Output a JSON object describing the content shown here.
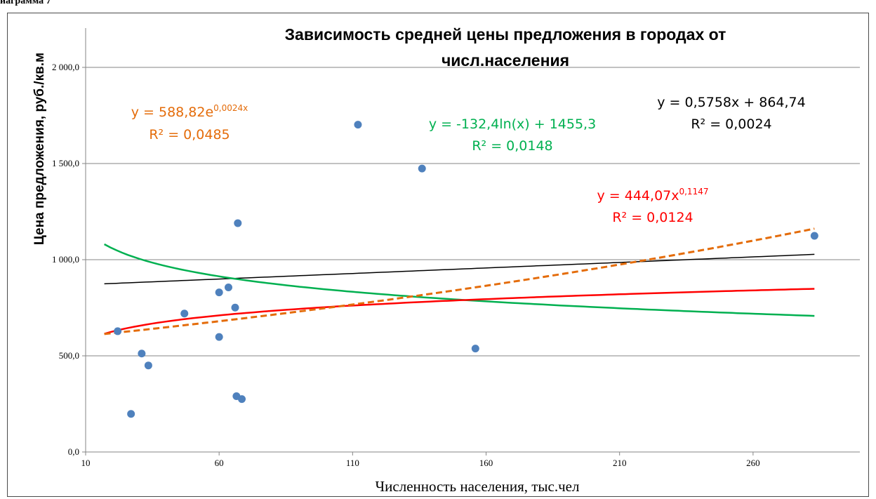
{
  "page": {
    "fragment_text": "иаграмма 7"
  },
  "chart_data": {
    "type": "scatter",
    "title_lines": [
      "Зависимость средней цены предложения в городах от",
      "числ.населения"
    ],
    "xlabel": "Численность населения, тыс.чел",
    "ylabel": "Цена  предложения, руб./кв.м",
    "xlim": [
      10,
      300
    ],
    "ylim": [
      0,
      2000
    ],
    "grid": true,
    "x_ticks": [
      10,
      60,
      110,
      160,
      210,
      260
    ],
    "x_tick_labels": [
      "10",
      "60",
      "110",
      "160",
      "210",
      "260"
    ],
    "y_ticks": [
      0,
      500,
      1000,
      1500,
      2000
    ],
    "y_tick_labels": [
      "0,0",
      "500,0",
      "1 000,0",
      "1 500,0",
      "2 000,0"
    ],
    "marker_color": "#4f81bd",
    "points": [
      {
        "x": 22,
        "y": 628
      },
      {
        "x": 27,
        "y": 198
      },
      {
        "x": 31,
        "y": 512
      },
      {
        "x": 33.5,
        "y": 450
      },
      {
        "x": 47,
        "y": 720
      },
      {
        "x": 60,
        "y": 598
      },
      {
        "x": 60,
        "y": 830
      },
      {
        "x": 63.5,
        "y": 856
      },
      {
        "x": 66,
        "y": 751
      },
      {
        "x": 66.5,
        "y": 290
      },
      {
        "x": 67,
        "y": 1190
      },
      {
        "x": 68.5,
        "y": 275
      },
      {
        "x": 112,
        "y": 1702
      },
      {
        "x": 136,
        "y": 1474
      },
      {
        "x": 156,
        "y": 538
      },
      {
        "x": 283,
        "y": 1124
      }
    ],
    "trendlines": [
      {
        "kind": "linear",
        "a": 0.5758,
        "b": 864.74,
        "color": "#000000",
        "dashed": false,
        "width": 1.5,
        "x_from": 17,
        "x_to": 283,
        "equation": "y = 0,5758x + 864,74",
        "r2": "R² = 0,0024"
      },
      {
        "kind": "log",
        "a": -132.4,
        "b": 1455.3,
        "color": "#00b050",
        "dashed": false,
        "width": 2.5,
        "x_from": 17,
        "x_to": 283,
        "equation": "y = -132,4ln(x) + 1455,3",
        "r2": "R² = 0,0148"
      },
      {
        "kind": "power",
        "a": 444.07,
        "b": 0.1147,
        "color": "#ff0000",
        "dashed": false,
        "width": 2.5,
        "x_from": 17,
        "x_to": 283,
        "equation_base": "y = 444,07x",
        "equation_sup": "0,1147",
        "r2": "R² = 0,0124"
      },
      {
        "kind": "exp",
        "a": 588.82,
        "b": 0.0024,
        "color": "#e46c0a",
        "dashed": true,
        "width": 3,
        "x_from": 17,
        "x_to": 283,
        "equation_base": "y = 588,82e",
        "equation_sup": "0,0024x",
        "r2": "R² = 0,0485"
      }
    ]
  }
}
